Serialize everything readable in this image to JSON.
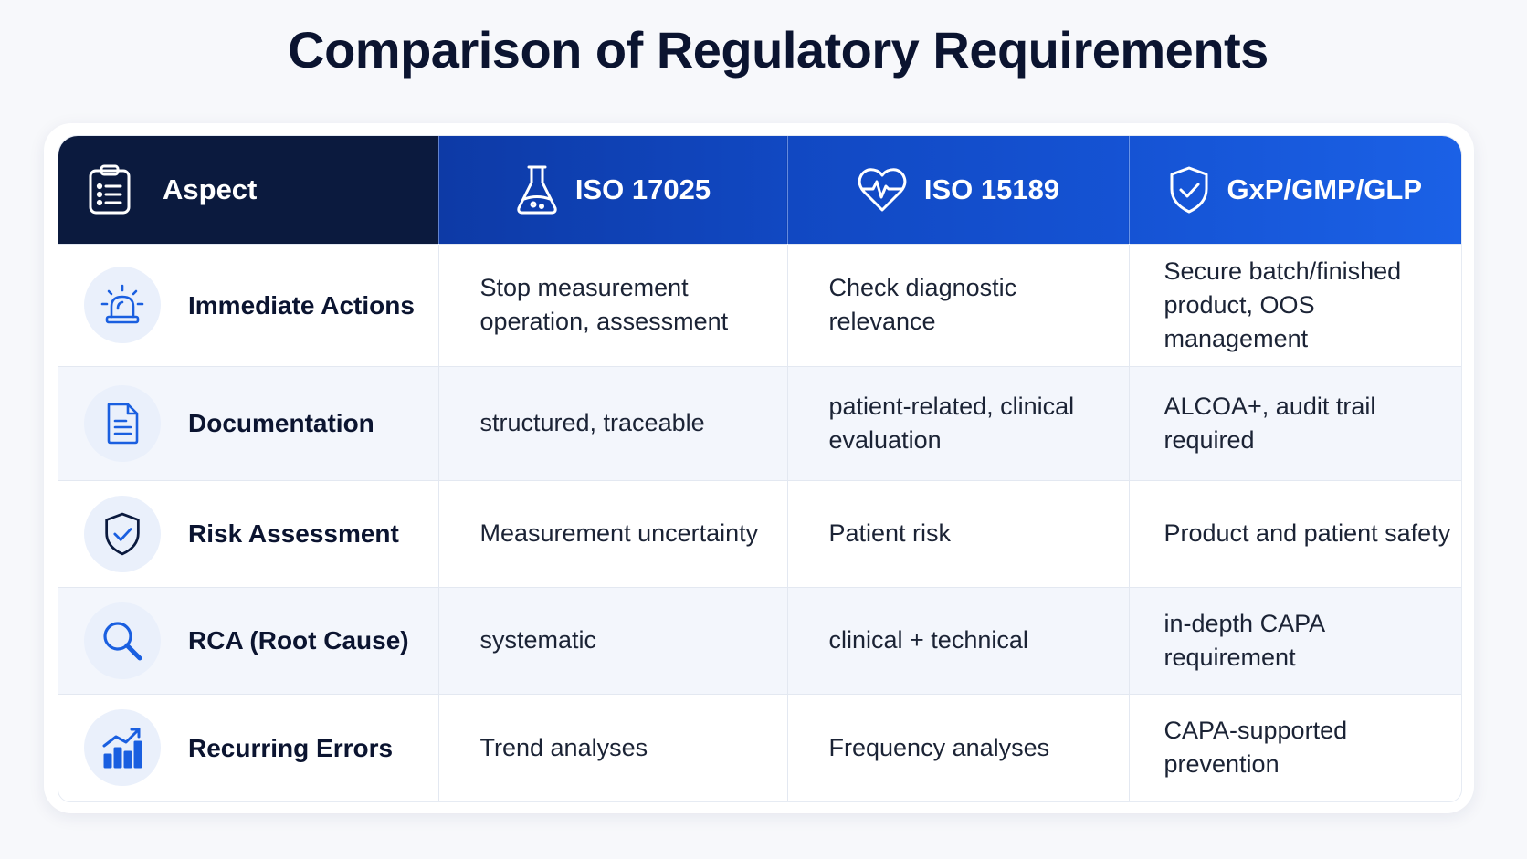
{
  "title": "Comparison of Regulatory Requirements",
  "header": {
    "aspect": "Aspect",
    "iso17025": "ISO 17025",
    "iso15189": "ISO 15189",
    "gxp": "GxP/GMP/GLP"
  },
  "rows": [
    {
      "aspect": "Immediate Actions",
      "icon": "alarm-light-icon",
      "iso17025": "Stop measurement operation, assessment",
      "iso15189": "Check diagnostic relevance",
      "gxp": "Secure batch/finished product, OOS management"
    },
    {
      "aspect": "Documentation",
      "icon": "document-icon",
      "iso17025": "structured, traceable",
      "iso15189": "patient-related, clinical evaluation",
      "gxp": "ALCOA+, audit trail required"
    },
    {
      "aspect": "Risk Assessment",
      "icon": "shield-check-icon",
      "iso17025": "Measurement uncertainty",
      "iso15189": "Patient risk",
      "gxp": "Product and patient safety"
    },
    {
      "aspect": "RCA (Root Cause)",
      "icon": "magnifier-icon",
      "iso17025": "systematic",
      "iso15189": "clinical + technical",
      "gxp": "in-depth CAPA requirement"
    },
    {
      "aspect": "Recurring Errors",
      "icon": "trend-chart-icon",
      "iso17025": "Trend analyses",
      "iso15189": "Frequency analyses",
      "gxp": "CAPA-supported prevention"
    }
  ],
  "colors": {
    "header_dark": "#0b1a3e",
    "header_blue": "#1148c2",
    "accent_icon": "#1a5fe0",
    "row_alt": "#f3f6fc"
  }
}
